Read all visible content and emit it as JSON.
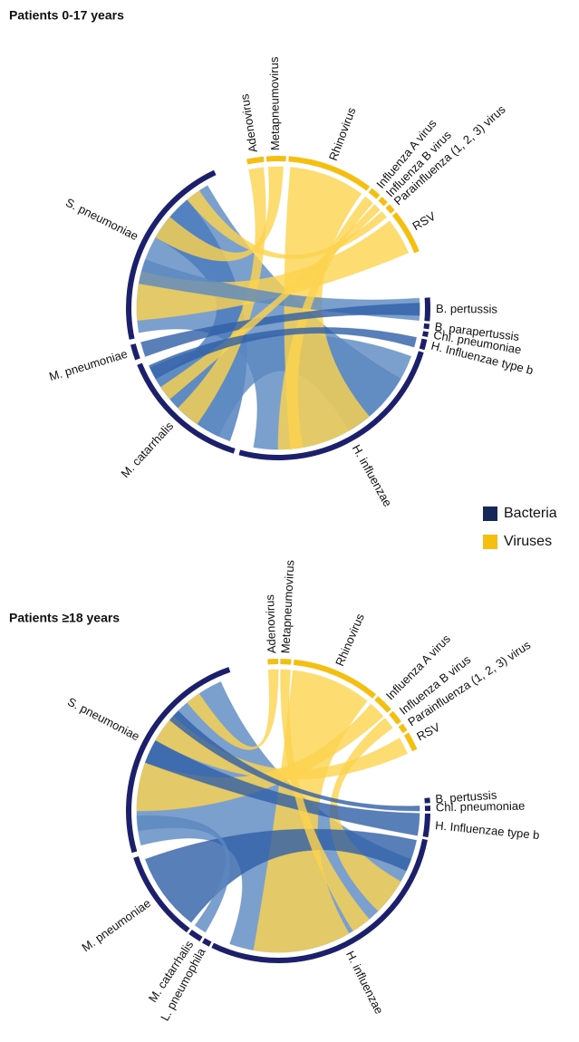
{
  "panels": [
    {
      "title": "Patients 0-17 years",
      "sectors": [
        {
          "label": "Adenovirus",
          "color": "#f5bf12"
        },
        {
          "label": "Metapneumovirus",
          "color": "#f5bf12"
        },
        {
          "label": "Rhinovirus",
          "color": "#f5bf12"
        },
        {
          "label": "Influenza A virus",
          "color": "#f5bf12"
        },
        {
          "label": "Influenza B virus",
          "color": "#f5bf12"
        },
        {
          "label": "Parainfluenza (1, 2, 3) virus",
          "color": "#f5bf12"
        },
        {
          "label": "RSV",
          "color": "#f5bf12"
        },
        {
          "label": "B. pertussis",
          "color": "#1c1f6b"
        },
        {
          "label": "B. parapertussis",
          "color": "#1c1f6b"
        },
        {
          "label": "Chl. pneumoniae",
          "color": "#1c1f6b"
        },
        {
          "label": "H. Influenzae type b",
          "color": "#1c1f6b"
        },
        {
          "label": "H. influenzae",
          "color": "#1c1f6b"
        },
        {
          "label": "M. catarrhalis",
          "color": "#1c1f6b"
        },
        {
          "label": "M. pneumoniae",
          "color": "#1c1f6b"
        },
        {
          "label": "S. pneumoniae",
          "color": "#1c1f6b"
        }
      ]
    },
    {
      "title": "Patients ≥18 years",
      "sectors": [
        {
          "label": "Adenovirus",
          "color": "#f5bf12"
        },
        {
          "label": "Metapneumovirus",
          "color": "#f5bf12"
        },
        {
          "label": "Rhinovirus",
          "color": "#f5bf12"
        },
        {
          "label": "Influenza A virus",
          "color": "#f5bf12"
        },
        {
          "label": "Influenza B virus",
          "color": "#f5bf12"
        },
        {
          "label": "Parainfluenza (1, 2, 3) virus",
          "color": "#f5bf12"
        },
        {
          "label": "RSV",
          "color": "#f5bf12"
        },
        {
          "label": "B. pertussis",
          "color": "#1c1f6b"
        },
        {
          "label": "Chl. pneumoniae",
          "color": "#1c1f6b"
        },
        {
          "label": "H. Influenzae type b",
          "color": "#1c1f6b"
        },
        {
          "label": "H. influenzae",
          "color": "#1c1f6b"
        },
        {
          "label": "L. pneumophila",
          "color": "#1c1f6b"
        },
        {
          "label": "M. catarrhalis",
          "color": "#1c1f6b"
        },
        {
          "label": "M. pneumoniae",
          "color": "#1c1f6b"
        },
        {
          "label": "S. pneumoniae",
          "color": "#1c1f6b"
        }
      ]
    }
  ],
  "legend": [
    {
      "label": "Bacteria",
      "color": "#14285a"
    },
    {
      "label": "Viruses",
      "color": "#f5bf12"
    }
  ]
}
